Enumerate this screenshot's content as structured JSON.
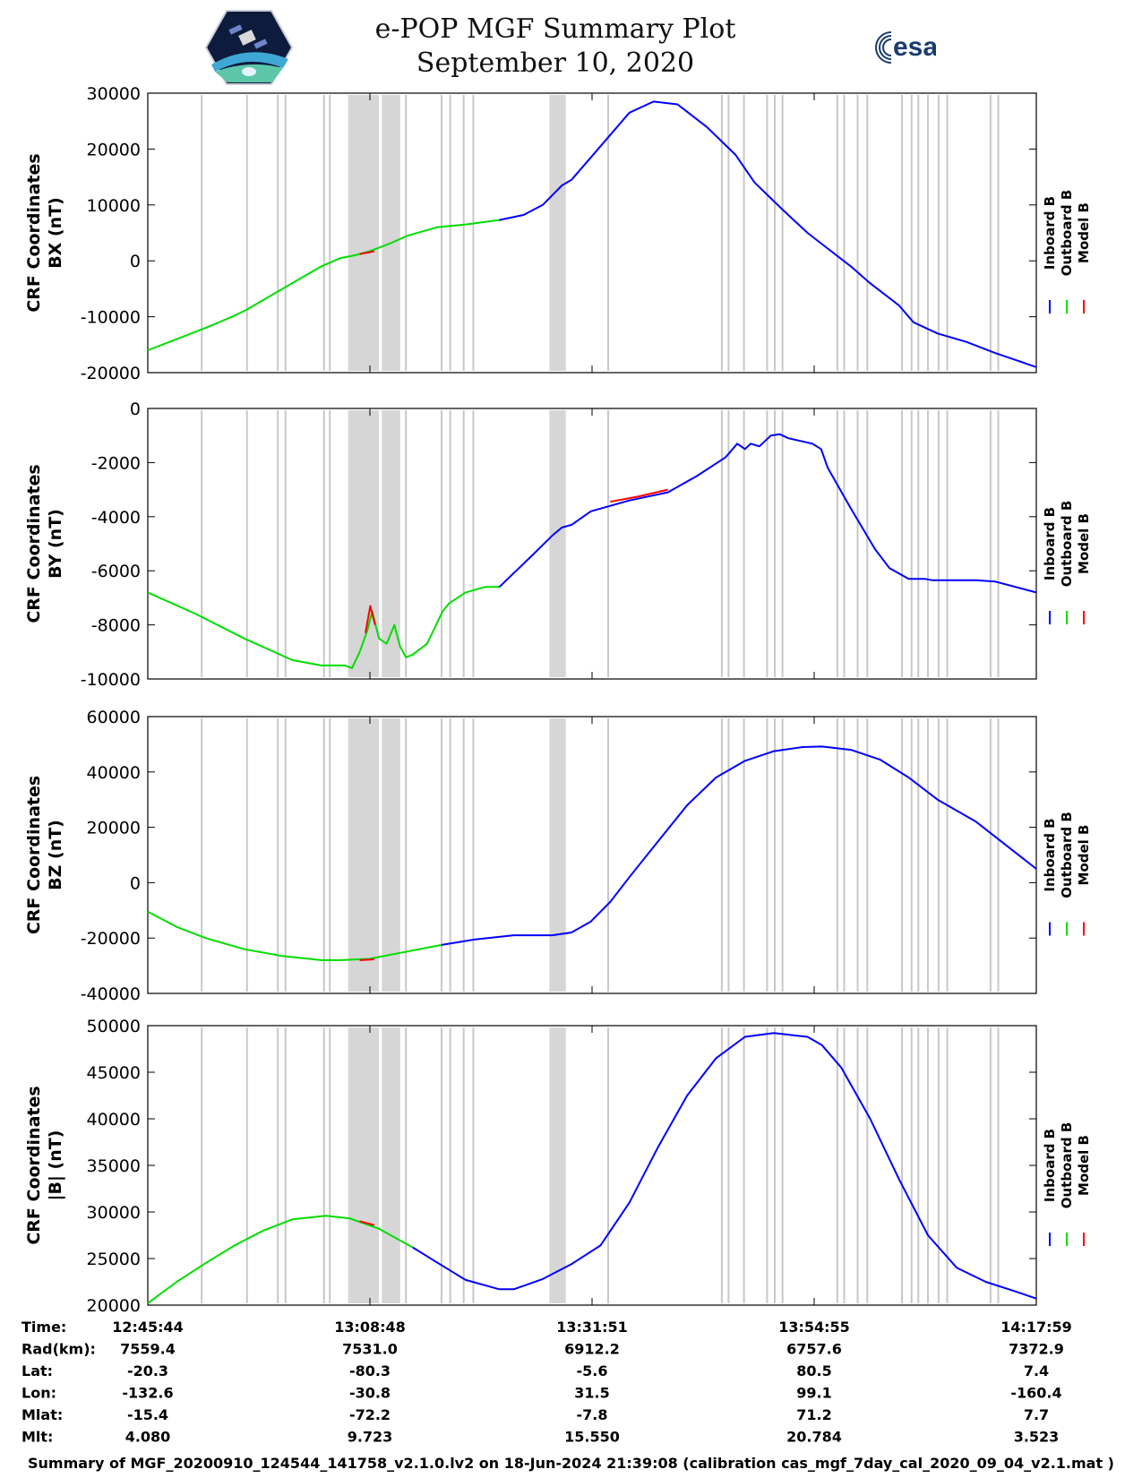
{
  "header": {
    "title": "e-POP MGF Summary Plot",
    "date": "September 10, 2020",
    "esa_logo_text": "esa"
  },
  "colors": {
    "inboard": "#0000ff",
    "outboard": "#00dd00",
    "model": "#ff0000",
    "gap": "#d6d6d6",
    "gap_line": "#c8c8c8"
  },
  "chart_data": {
    "type": "line",
    "x_label_rows": [
      "Time:",
      "Rad(km):",
      "Lat:",
      "Lon:",
      "Mlat:",
      "Mlt:"
    ],
    "x_ticks": [
      {
        "Time:": "12:45:44",
        "Rad(km):": "7559.4",
        "Lat:": "-20.3",
        "Lon:": "-132.6",
        "Mlat:": "-15.4",
        "Mlt:": "4.080"
      },
      {
        "Time:": "13:08:48",
        "Rad(km):": "7531.0",
        "Lat:": "-80.3",
        "Lon:": "-30.8",
        "Mlat:": "-72.2",
        "Mlt:": "9.723"
      },
      {
        "Time:": "13:31:51",
        "Rad(km):": "6912.2",
        "Lat:": "-5.6",
        "Lon:": "31.5",
        "Mlat:": "-7.8",
        "Mlt:": "15.550"
      },
      {
        "Time:": "13:54:55",
        "Rad(km):": "6757.6",
        "Lat:": "80.5",
        "Lon:": "99.1",
        "Mlat:": "71.2",
        "Mlt:": "20.784"
      },
      {
        "Time:": "14:17:59",
        "Rad(km):": "7372.9",
        "Lat:": "7.4",
        "Lon:": "-160.4",
        "Mlat:": "7.7",
        "Mlt:": "3.523"
      }
    ],
    "x_range_minutes": [
      0,
      92.25
    ],
    "legend": [
      "Inboard B",
      "Outboard B",
      "Model B"
    ],
    "gap_bands_minutes": [
      [
        20.8,
        24.0
      ],
      [
        24.3,
        26.2
      ],
      [
        41.7,
        43.4
      ]
    ],
    "gap_lines_minutes": [
      5.6,
      10.3,
      13.5,
      14.3,
      18.3,
      18.9,
      26.8,
      30.5,
      31.4,
      32.8,
      33.8,
      47.8,
      59.6,
      60.3,
      61.9,
      64.3,
      65.1,
      65.9,
      71.6,
      72.3,
      73.7,
      74.7,
      78.3,
      79.3,
      80.0,
      81.0,
      82.1,
      83.0,
      87.5,
      88.3
    ],
    "panels": [
      {
        "name": "bx",
        "ylabel": [
          "CRF Coordinates",
          "BX (nT)"
        ],
        "ylim": [
          -20000,
          30000
        ],
        "yticks": [
          -20000,
          -10000,
          0,
          10000,
          20000,
          30000
        ],
        "series": [
          {
            "name": "Outboard B",
            "color": "outboard",
            "x": [
              0,
              3,
              6,
              9,
              10.2,
              14,
              18,
              20,
              21.5,
              23,
              25,
              27,
              30,
              33,
              36.5
            ],
            "y": [
              -16000,
              -14000,
              -12000,
              -9800,
              -8800,
              -5000,
              -1000,
              500,
              1000,
              1700,
              3000,
              4500,
              6000,
              6500,
              7300
            ]
          },
          {
            "name": "Model B",
            "color": "model",
            "x": [
              22,
              23.5
            ],
            "y": [
              1200,
              1700
            ]
          },
          {
            "name": "Inboard B",
            "color": "inboard",
            "x": [
              36.5,
              39,
              41,
              43,
              44,
              47,
              50,
              52.5,
              55,
              58,
              61,
              62,
              63,
              66,
              68.5,
              70,
              73,
              75,
              78,
              79.5,
              82,
              85,
              88,
              92.25
            ],
            "y": [
              7300,
              8200,
              10000,
              13500,
              14500,
              20500,
              26500,
              28500,
              28000,
              24000,
              19000,
              16500,
              14000,
              9000,
              5000,
              3000,
              -1000,
              -4000,
              -8000,
              -11000,
              -13000,
              -14500,
              -16500,
              -19000
            ]
          }
        ]
      },
      {
        "name": "by",
        "ylabel": [
          "CRF Coordinates",
          "BY (nT)"
        ],
        "ylim": [
          -10000,
          0
        ],
        "yticks": [
          -10000,
          -8000,
          -6000,
          -4000,
          -2000,
          0
        ],
        "series": [
          {
            "name": "Outboard B",
            "color": "outboard",
            "x": [
              0,
              5,
              10,
              15,
              18,
              20.5,
              21.2,
              22,
              22.8,
              23.3,
              24,
              24.8,
              25.6,
              26.2,
              26.8,
              27.5,
              29,
              30.6,
              31.3,
              33,
              35,
              36.5
            ],
            "y": [
              -6800,
              -7600,
              -8500,
              -9300,
              -9500,
              -9500,
              -9600,
              -9000,
              -8200,
              -7500,
              -8500,
              -8700,
              -8000,
              -8800,
              -9200,
              -9100,
              -8700,
              -7500,
              -7200,
              -6800,
              -6600,
              -6600
            ]
          },
          {
            "name": "Model B",
            "color": "model",
            "x": [
              22.6,
              23.1,
              23.6
            ],
            "y": [
              -8300,
              -7300,
              -8000
            ]
          },
          {
            "name": "Inboard B",
            "color": "inboard",
            "x": [
              36.5,
              40,
              42,
              43,
              44,
              46,
              50,
              54,
              57,
              60,
              61.2,
              62,
              62.6,
              63.5,
              64.7,
              65.6,
              66.5,
              69,
              69.9,
              70.6,
              73,
              75.5,
              77,
              79,
              80.7,
              81.5,
              86,
              88,
              92.25
            ],
            "y": [
              -6600,
              -5400,
              -4700,
              -4400,
              -4300,
              -3800,
              -3400,
              -3100,
              -2500,
              -1800,
              -1300,
              -1500,
              -1300,
              -1400,
              -1000,
              -950,
              -1100,
              -1300,
              -1500,
              -2200,
              -3700,
              -5200,
              -5900,
              -6300,
              -6300,
              -6350,
              -6350,
              -6400,
              -6800
            ]
          },
          {
            "name": "Model B",
            "color": "model",
            "x": [
              48,
              51,
              54
            ],
            "y": [
              -3450,
              -3250,
              -3000
            ]
          }
        ]
      },
      {
        "name": "bz",
        "ylabel": [
          "CRF Coordinates",
          "BZ (nT)"
        ],
        "ylim": [
          -40000,
          60000
        ],
        "yticks": [
          -40000,
          -20000,
          0,
          20000,
          40000,
          60000
        ],
        "series": [
          {
            "name": "Outboard B",
            "color": "outboard",
            "x": [
              0,
              3,
              6,
              10,
              14,
              18,
              20,
              23,
              26,
              30.5
            ],
            "y": [
              -10500,
              -16000,
              -20000,
              -24000,
              -26500,
              -28000,
              -28000,
              -27500,
              -25500,
              -22500
            ]
          },
          {
            "name": "Model B",
            "color": "model",
            "x": [
              22,
              23.5
            ],
            "y": [
              -28000,
              -27700
            ]
          },
          {
            "name": "Inboard B",
            "color": "inboard",
            "x": [
              30.5,
              34,
              38,
              42,
              44,
              46,
              48,
              50,
              53,
              56,
              59,
              62,
              65,
              68,
              70,
              73,
              76,
              79,
              82,
              86,
              92.25
            ],
            "y": [
              -22500,
              -20500,
              -19000,
              -19000,
              -18000,
              -14000,
              -7000,
              2000,
              15000,
              28000,
              38000,
              44000,
              47500,
              49000,
              49200,
              48000,
              44500,
              38000,
              30000,
              22000,
              5000
            ]
          }
        ]
      },
      {
        "name": "bmag",
        "ylabel": [
          "CRF Coordinates",
          "|B| (nT)"
        ],
        "ylim": [
          20000,
          50000
        ],
        "yticks": [
          20000,
          25000,
          30000,
          35000,
          40000,
          45000,
          50000
        ],
        "series": [
          {
            "name": "Outboard B",
            "color": "outboard",
            "x": [
              0,
              3,
              6,
              9,
              12,
              15,
              18.5,
              21,
              24,
              27.5
            ],
            "y": [
              20200,
              22500,
              24500,
              26400,
              28000,
              29200,
              29600,
              29300,
              28200,
              26200
            ]
          },
          {
            "name": "Model B",
            "color": "model",
            "x": [
              22,
              23.5
            ],
            "y": [
              29000,
              28600
            ]
          },
          {
            "name": "Inboard B",
            "color": "inboard",
            "x": [
              27.5,
              30,
              33,
              36.5,
              38,
              41,
              44,
              47,
              50,
              53,
              56,
              59,
              62,
              65,
              68.5,
              70,
              72,
              75,
              78,
              81,
              84,
              87,
              90,
              92.25
            ],
            "y": [
              26200,
              24600,
              22700,
              21700,
              21700,
              22800,
              24400,
              26400,
              31000,
              37000,
              42500,
              46500,
              48800,
              49200,
              48800,
              47900,
              45500,
              40000,
              33500,
              27500,
              24000,
              22500,
              21500,
              20700
            ]
          }
        ]
      }
    ]
  },
  "footer": "Summary of MGF_20200910_124544_141758_v2.1.0.lv2 on 18-Jun-2024 21:39:08 (calibration cas_mgf_7day_cal_2020_09_04_v2.1.mat )"
}
